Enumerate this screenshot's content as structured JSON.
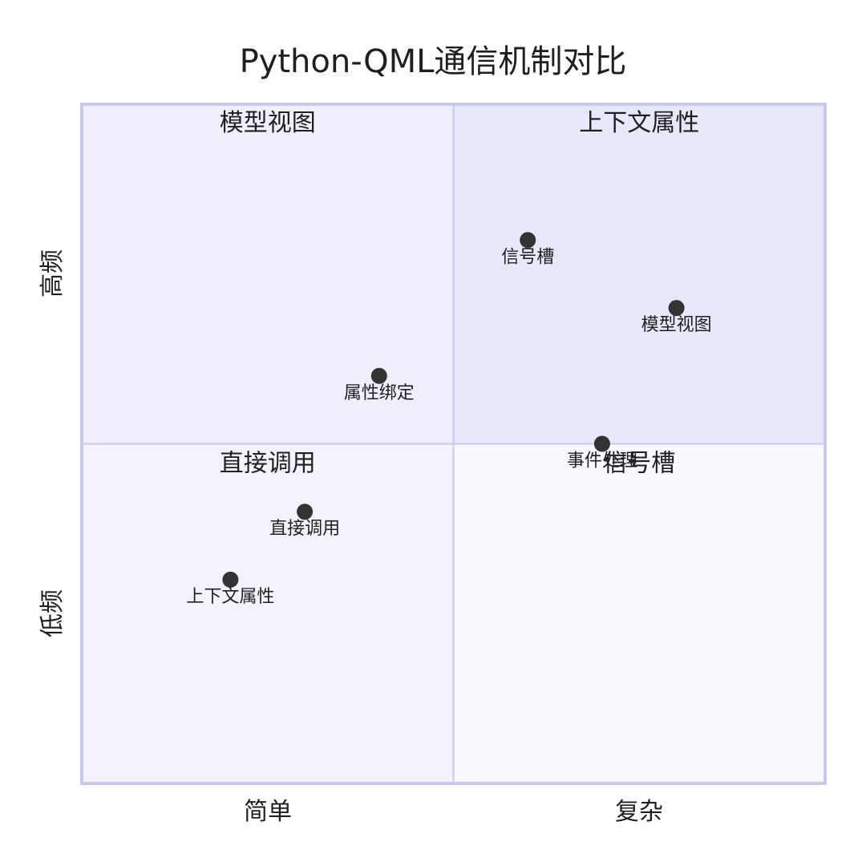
{
  "chart_data": {
    "type": "quadrant",
    "title": "Python-QML通信机制对比",
    "x_axis": {
      "low_label": "简单",
      "high_label": "复杂"
    },
    "y_axis": {
      "low_label": "低频",
      "high_label": "高频"
    },
    "quadrants": {
      "q1": "上下文属性",
      "q2": "模型视图",
      "q3": "直接调用",
      "q4": "信号槽"
    },
    "xlim": [
      0,
      1
    ],
    "ylim": [
      0,
      1
    ],
    "points": [
      {
        "label": "信号槽",
        "x": 0.6,
        "y": 0.8
      },
      {
        "label": "模型视图",
        "x": 0.8,
        "y": 0.7
      },
      {
        "label": "属性绑定",
        "x": 0.4,
        "y": 0.6
      },
      {
        "label": "事件处理",
        "x": 0.7,
        "y": 0.5
      },
      {
        "label": "直接调用",
        "x": 0.3,
        "y": 0.4
      },
      {
        "label": "上下文属性",
        "x": 0.2,
        "y": 0.3
      }
    ],
    "colors": {
      "q1_fill": "#e8e8fc",
      "q2_fill": "#f0effd",
      "q3_fill": "#f4f3fd",
      "q4_fill": "#f9f8fe",
      "border": "#c9c8ee",
      "point": "#333333"
    }
  }
}
